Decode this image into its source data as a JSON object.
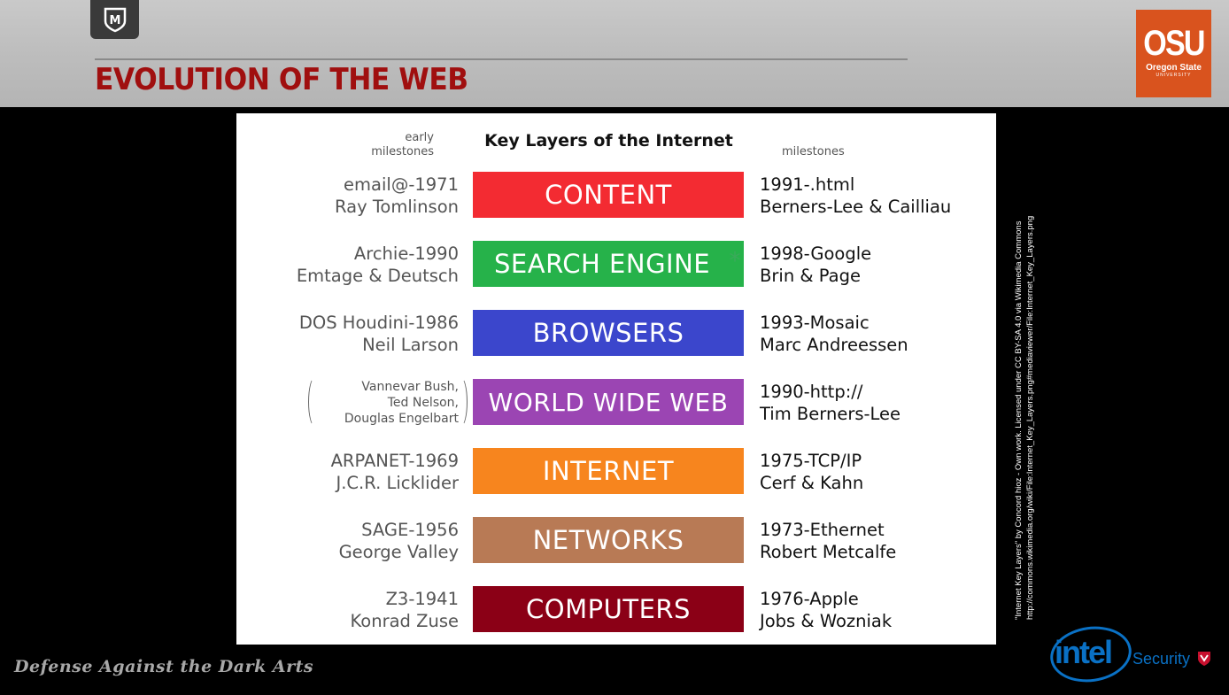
{
  "header": {
    "title": "EVOLUTION OF THE WEB",
    "badge_letter": "M",
    "osu_logo": {
      "main": "OSU",
      "sub": "Oregon State",
      "tiny": "UNIVERSITY"
    }
  },
  "figure": {
    "title": "Key Layers of the Internet",
    "left_header": "early milestones",
    "right_header": "milestones",
    "layers": [
      {
        "label": "CONTENT",
        "color": "#f32b32",
        "left": [
          "email@-1971",
          "Ray Tomlinson"
        ],
        "right": [
          "1991-.html",
          "Berners-Lee & Cailliau"
        ]
      },
      {
        "label": "SEARCH ENGINE",
        "color": "#26b24a",
        "asterisk": "*",
        "left": [
          "Archie-1990",
          "Emtage & Deutsch"
        ],
        "right": [
          "1998-Google",
          "Brin & Page"
        ]
      },
      {
        "label": "BROWSERS",
        "color": "#3b46cc",
        "left": [
          "DOS Houdini-1986",
          "Neil Larson"
        ],
        "right": [
          "1993-Mosaic",
          "Marc Andreessen"
        ]
      },
      {
        "label": "WORLD WIDE WEB",
        "color": "#9b45b3",
        "left": [
          "Vannevar Bush,",
          "Ted Nelson,",
          "Douglas Engelbart"
        ],
        "right": [
          "1990-http://",
          "Tim Berners-Lee"
        ]
      },
      {
        "label": "INTERNET",
        "color": "#f7851e",
        "left": [
          "ARPANET-1969",
          "J.C.R. Licklider"
        ],
        "right": [
          "1975-TCP/IP",
          "Cerf & Kahn"
        ]
      },
      {
        "label": "NETWORKS",
        "color": "#b87a55",
        "left": [
          "SAGE-1956",
          "George Valley"
        ],
        "right": [
          "1973-Ethernet",
          "Robert Metcalfe"
        ]
      },
      {
        "label": "COMPUTERS",
        "color": "#8b0016",
        "left": [
          "Z3-1941",
          "Konrad Zuse"
        ],
        "right": [
          "1976-Apple",
          "Jobs & Wozniak"
        ]
      }
    ]
  },
  "attribution": {
    "line1": "\"Internet Key Layers\" by Concord hioz - Own work. Licensed under CC BY-SA 4.0 via Wikimedia Commons",
    "line2": "http://commons.wikimedia.org/wiki/File:Internet_Key_Layers.png#mediaviewer/File:Internet_Key_Layers.png"
  },
  "footer": {
    "left_text": "Defense Against the Dark Arts",
    "intel": "intel",
    "security": "Security"
  }
}
